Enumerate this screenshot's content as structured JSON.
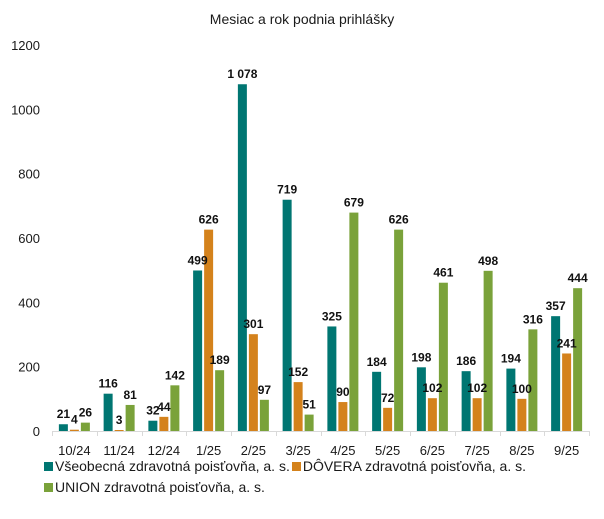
{
  "chart_data": {
    "type": "bar",
    "title": "Mesiac a rok podnia prihlášky",
    "xlabel": "",
    "ylabel": "",
    "ylim": [
      0,
      1200
    ],
    "yticks": [
      "0",
      "200",
      "400",
      "600",
      "800",
      "1000",
      "1200"
    ],
    "ytick_values": [
      0,
      200,
      400,
      600,
      800,
      1000,
      1200
    ],
    "grid": false,
    "legend_position": "bottom",
    "categories": [
      "10/24",
      "11/24",
      "12/24",
      "1/25",
      "2/25",
      "3/25",
      "4/25",
      "5/25",
      "6/25",
      "7/25",
      "8/25",
      "9/25"
    ],
    "series": [
      {
        "name": "Všeobecná zdravotná poisťovňa, a. s.",
        "color": "#007672",
        "values": [
          21,
          116,
          32,
          499,
          1078,
          719,
          325,
          184,
          198,
          186,
          194,
          357
        ],
        "labels": [
          "21",
          "116",
          "32",
          "499",
          "1 078",
          "719",
          "325",
          "184",
          "198",
          "186",
          "194",
          "357"
        ]
      },
      {
        "name": "DÔVERA zdravotná poisťovňa, a. s.",
        "color": "#D4821C",
        "values": [
          4,
          3,
          44,
          626,
          301,
          152,
          90,
          72,
          102,
          102,
          100,
          241
        ],
        "labels": [
          "4",
          "3",
          "44",
          "626",
          "301",
          "152",
          "90",
          "72",
          "102",
          "102",
          "100",
          "241"
        ]
      },
      {
        "name": "UNION zdravotná poisťovňa, a. s.",
        "color": "#7AA23A",
        "values": [
          26,
          81,
          142,
          189,
          97,
          51,
          679,
          626,
          461,
          498,
          316,
          444
        ],
        "labels": [
          "26",
          "81",
          "142",
          "189",
          "97",
          "51",
          "679",
          "626",
          "461",
          "498",
          "316",
          "444"
        ]
      }
    ]
  },
  "legend": {
    "items": [
      {
        "label": "Všeobecná zdravotná poisťovňa, a. s.",
        "color": "#007672"
      },
      {
        "label": "DÔVERA zdravotná poisťovňa, a. s.",
        "color": "#D4821C"
      },
      {
        "label": "UNION zdravotná poisťovňa, a. s.",
        "color": "#7AA23A"
      }
    ]
  }
}
